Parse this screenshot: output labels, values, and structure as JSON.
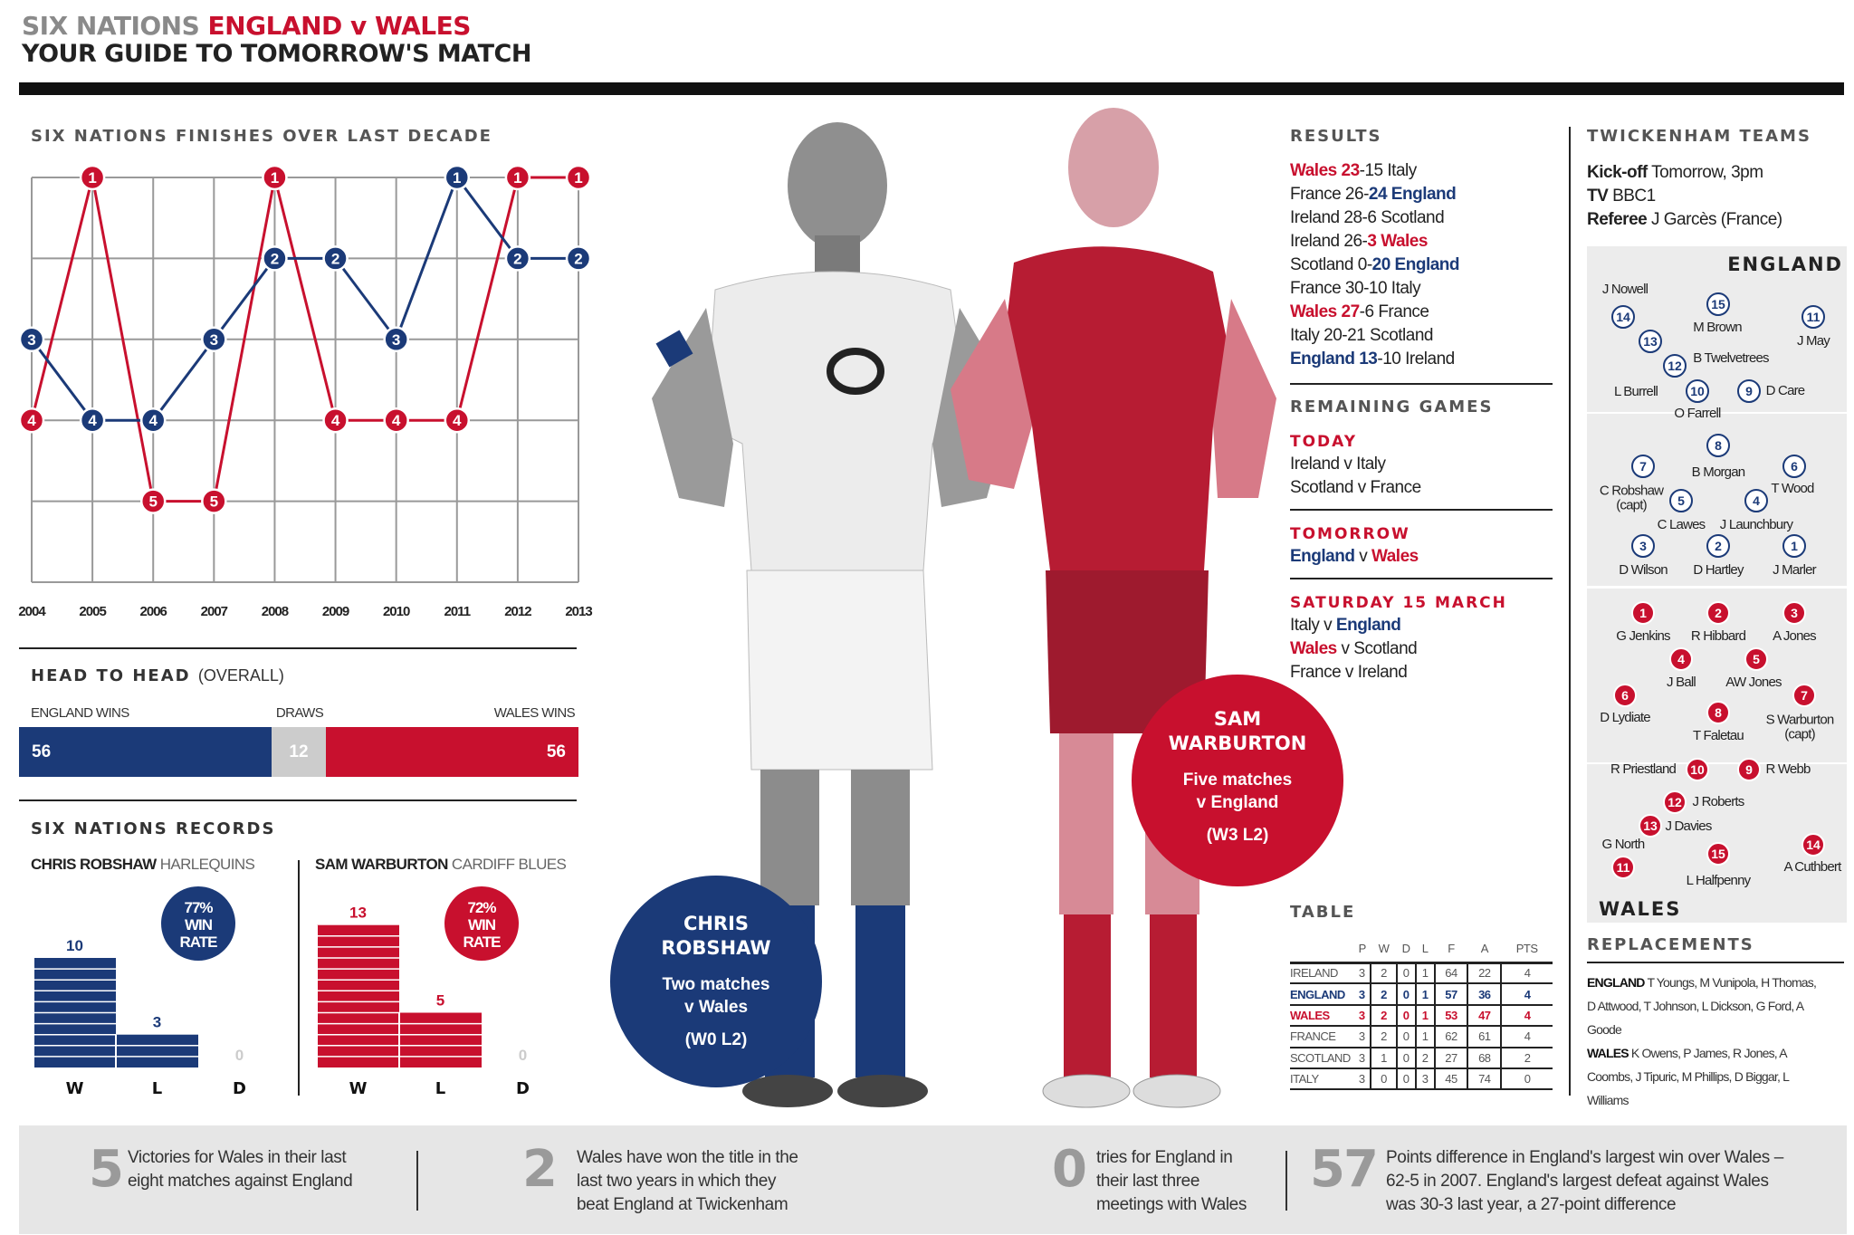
{
  "header": {
    "kicker": "SIX NATIONS",
    "match": "ENGLAND v WALES",
    "subtitle": "YOUR GUIDE TO TOMORROW'S MATCH"
  },
  "colors": {
    "england": "#1b3a78",
    "wales": "#c8102e",
    "draws": "#cccccc"
  },
  "finishes": {
    "title": "SIX NATIONS FINISHES OVER LAST DECADE"
  },
  "chart_data": [
    {
      "type": "line",
      "title": "SIX NATIONS FINISHES OVER LAST DECADE",
      "x": [
        "2004",
        "2005",
        "2006",
        "2007",
        "2008",
        "2009",
        "2010",
        "2011",
        "2012",
        "2013"
      ],
      "ylim": [
        1,
        6
      ],
      "y_inverted": true,
      "grid": true,
      "series": [
        {
          "team": "england",
          "color": "#1b3a78",
          "values": [
            3,
            4,
            4,
            3,
            2,
            2,
            3,
            1,
            2,
            2
          ]
        },
        {
          "team": "wales",
          "color": "#c8102e",
          "values": [
            4,
            1,
            5,
            5,
            1,
            4,
            4,
            4,
            1,
            1
          ]
        }
      ]
    },
    {
      "type": "bar",
      "title": "HEAD TO HEAD",
      "subtitle": "(OVERALL)",
      "stacked": true,
      "orientation": "horizontal",
      "categories": [
        "ENGLAND WINS",
        "DRAWS",
        "WALES WINS"
      ],
      "values": [
        56,
        12,
        56
      ]
    },
    {
      "type": "bar",
      "player": "CHRIS ROBSHAW",
      "club": "HARLEQUINS",
      "categories": [
        "W",
        "L",
        "D"
      ],
      "values": [
        10,
        3,
        0
      ],
      "win_rate": "77%",
      "win_rate_label": [
        "WIN",
        "RATE"
      ],
      "color": "#1b3a78"
    },
    {
      "type": "bar",
      "player": "SAM WARBURTON",
      "club": "CARDIFF BLUES",
      "categories": [
        "W",
        "L",
        "D"
      ],
      "values": [
        13,
        5,
        0
      ],
      "win_rate": "72%",
      "win_rate_label": [
        "WIN",
        "RATE"
      ],
      "color": "#c8102e"
    },
    {
      "type": "table",
      "title": "TABLE",
      "columns": [
        "",
        "P",
        "W",
        "D",
        "L",
        "F",
        "A",
        "PTS"
      ],
      "rows": [
        [
          "IRELAND",
          "3",
          "2",
          "0",
          "1",
          "64",
          "22",
          "4"
        ],
        [
          "ENGLAND",
          "3",
          "2",
          "0",
          "1",
          "57",
          "36",
          "4"
        ],
        [
          "WALES",
          "3",
          "2",
          "0",
          "1",
          "53",
          "47",
          "4"
        ],
        [
          "FRANCE",
          "3",
          "2",
          "0",
          "1",
          "62",
          "61",
          "4"
        ],
        [
          "SCOTLAND",
          "3",
          "1",
          "0",
          "2",
          "27",
          "68",
          "2"
        ],
        [
          "ITALY",
          "3",
          "0",
          "0",
          "3",
          "45",
          "74",
          "0"
        ]
      ]
    }
  ],
  "records": {
    "title": "SIX NATIONS RECORDS"
  },
  "players": {
    "robshaw": {
      "name": "CHRIS ROBSHAW",
      "line1": "Two matches",
      "line2": "v Wales",
      "record": "(W0 L2)"
    },
    "warburton": {
      "name": "SAM WARBURTON",
      "line1": "Five matches",
      "line2": "v England",
      "record": "(W3 L2)"
    }
  },
  "results": {
    "title": "RESULTS",
    "items": [
      {
        "home": "Wales",
        "hs": "23",
        "as": "15",
        "away": "Italy",
        "hl": "home",
        "team": "wales"
      },
      {
        "home": "France",
        "hs": "26",
        "as": "24",
        "away": "England",
        "hl": "away",
        "team": "england"
      },
      {
        "home": "Ireland",
        "hs": "28",
        "as": "6",
        "away": "Scotland",
        "hl": "",
        "team": ""
      },
      {
        "home": "Ireland",
        "hs": "26",
        "as": "3",
        "away": "Wales",
        "hl": "away",
        "team": "wales"
      },
      {
        "home": "Scotland",
        "hs": "0",
        "as": "20",
        "away": "England",
        "hl": "away",
        "team": "england"
      },
      {
        "home": "France",
        "hs": "30",
        "as": "10",
        "away": "Italy",
        "hl": "",
        "team": ""
      },
      {
        "home": "Wales",
        "hs": "27",
        "as": "6",
        "away": "France",
        "hl": "home",
        "team": "wales"
      },
      {
        "home": "Italy",
        "hs": "20",
        "as": "21",
        "away": "Scotland",
        "hl": "",
        "team": ""
      },
      {
        "home": "England",
        "hs": "13",
        "as": "10",
        "away": "Ireland",
        "hl": "home",
        "team": "england"
      }
    ]
  },
  "remaining": {
    "title": "REMAINING GAMES",
    "groups": [
      {
        "day": "TODAY",
        "games": [
          {
            "home": "Ireland",
            "away": "Italy"
          },
          {
            "home": "Scotland",
            "away": "France"
          }
        ]
      },
      {
        "day": "TOMORROW",
        "games": [
          {
            "home": "England",
            "away": "Wales"
          }
        ]
      },
      {
        "day": "SATURDAY 15 MARCH",
        "games": [
          {
            "home": "Italy",
            "away": "England"
          },
          {
            "home": "Wales",
            "away": "Scotland"
          },
          {
            "home": "France",
            "away": "Ireland"
          }
        ]
      }
    ],
    "v": "v"
  },
  "teams": {
    "title": "TWICKENHAM TEAMS",
    "kickoff_label": "Kick-off",
    "kickoff": "Tomorrow, 3pm",
    "tv_label": "TV",
    "tv": "BBC1",
    "referee_label": "Referee",
    "referee": "J Garcès (France)",
    "england_label": "ENGLAND",
    "wales_label": "WALES",
    "england": [
      {
        "n": "15",
        "name": "M Brown"
      },
      {
        "n": "14",
        "name": "J Nowell"
      },
      {
        "n": "13",
        "name": "L Burrell"
      },
      {
        "n": "12",
        "name": "B Twelvetrees"
      },
      {
        "n": "11",
        "name": "J May"
      },
      {
        "n": "10",
        "name": "O Farrell"
      },
      {
        "n": "9",
        "name": "D Care"
      },
      {
        "n": "8",
        "name": "B Morgan"
      },
      {
        "n": "7",
        "name": "C Robshaw (capt)"
      },
      {
        "n": "6",
        "name": "T Wood"
      },
      {
        "n": "5",
        "name": "C Lawes"
      },
      {
        "n": "4",
        "name": "J Launchbury"
      },
      {
        "n": "3",
        "name": "D Wilson"
      },
      {
        "n": "2",
        "name": "D Hartley"
      },
      {
        "n": "1",
        "name": "J Marler"
      }
    ],
    "wales": [
      {
        "n": "1",
        "name": "G Jenkins"
      },
      {
        "n": "2",
        "name": "R Hibbard"
      },
      {
        "n": "3",
        "name": "A Jones"
      },
      {
        "n": "4",
        "name": "J Ball"
      },
      {
        "n": "5",
        "name": "AW Jones"
      },
      {
        "n": "6",
        "name": "D Lydiate"
      },
      {
        "n": "7",
        "name": "S Warburton (capt)"
      },
      {
        "n": "8",
        "name": "T Faletau"
      },
      {
        "n": "9",
        "name": "R Webb"
      },
      {
        "n": "10",
        "name": "R Priestland"
      },
      {
        "n": "11",
        "name": "G North"
      },
      {
        "n": "12",
        "name": "J Roberts"
      },
      {
        "n": "13",
        "name": "J Davies"
      },
      {
        "n": "14",
        "name": "A Cuthbert"
      },
      {
        "n": "15",
        "name": "L Halfpenny"
      }
    ],
    "replacements_title": "REPLACEMENTS",
    "replacements": [
      {
        "team": "ENGLAND",
        "names": "T Youngs, M Vunipola, H Thomas, D Attwood, T Johnson, L Dickson, G Ford, A Goode"
      },
      {
        "team": "WALES",
        "names": "K Owens, P James, R Jones, A Coombs, J Tipuric, M Phillips, D Biggar, L Williams"
      }
    ]
  },
  "stats": [
    {
      "num": "5",
      "text": "Victories for Wales in their last eight matches against England"
    },
    {
      "num": "2",
      "text": "Wales have won the title in the last two years in which they beat England at Twickenham"
    },
    {
      "num": "0",
      "text": "tries for England in their last three meetings with Wales"
    },
    {
      "num": "57",
      "text": "Points difference in England's largest win over Wales – 62-5 in 2007. England's largest defeat against Wales was 30-3 last year, a 27-point difference"
    }
  ]
}
